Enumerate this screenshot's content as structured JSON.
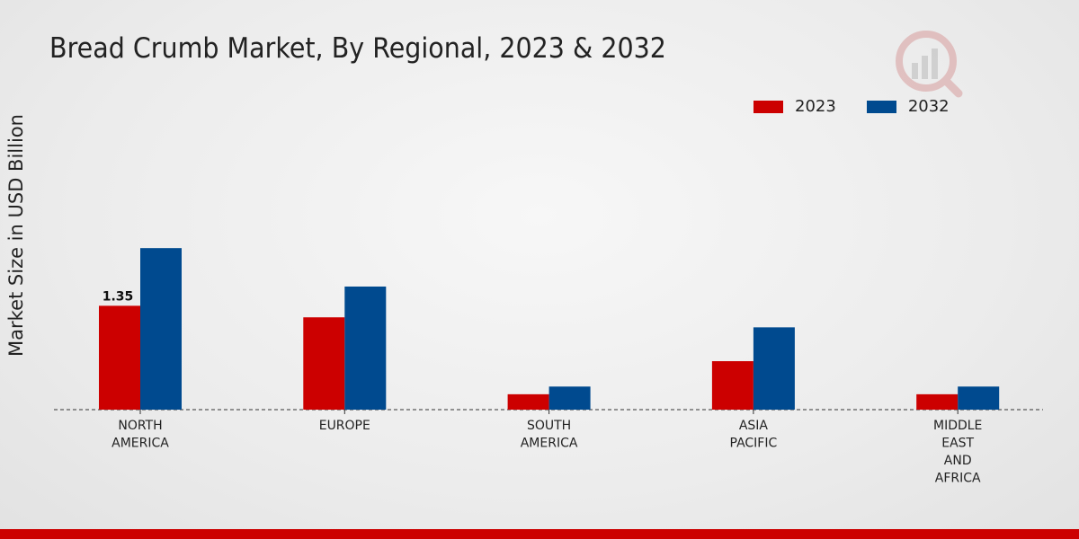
{
  "chart_data": {
    "type": "bar",
    "title": "Bread Crumb Market, By Regional, 2023 & 2032",
    "xlabel": "",
    "ylabel": "Market Size in USD Billion",
    "categories": [
      [
        "NORTH",
        "AMERICA"
      ],
      [
        "EUROPE"
      ],
      [
        "SOUTH",
        "AMERICA"
      ],
      [
        "ASIA",
        "PACIFIC"
      ],
      [
        "MIDDLE",
        "EAST",
        "AND",
        "AFRICA"
      ]
    ],
    "series": [
      {
        "name": "2023",
        "color": "#cc0000",
        "values": [
          1.35,
          1.2,
          0.2,
          0.63,
          0.2
        ]
      },
      {
        "name": "2032",
        "color": "#004a8f",
        "values": [
          2.1,
          1.6,
          0.3,
          1.07,
          0.3
        ]
      }
    ],
    "data_labels": [
      {
        "series": 0,
        "index": 0,
        "text": "1.35"
      }
    ],
    "ylim": [
      0,
      4
    ],
    "grid": false,
    "legend": "top-right"
  }
}
